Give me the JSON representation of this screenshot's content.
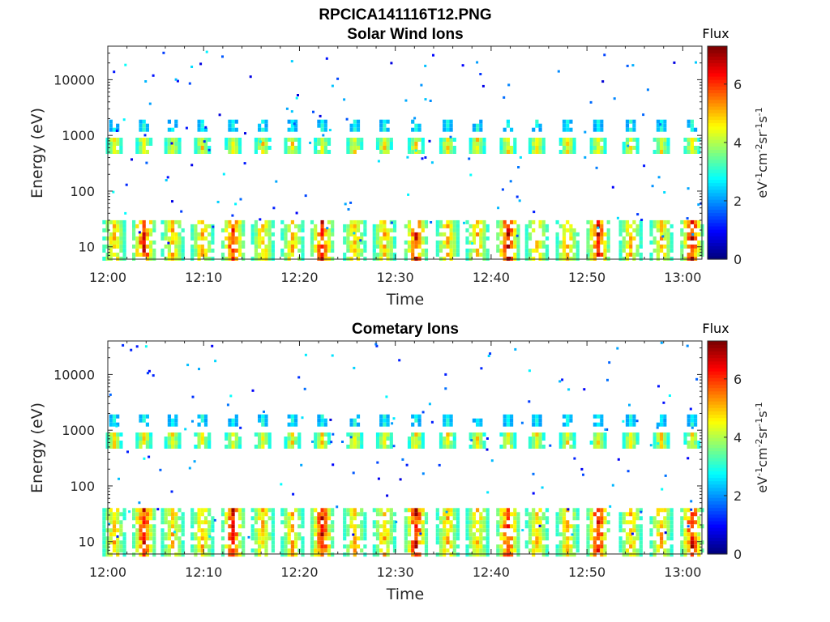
{
  "figure": {
    "title": "RPCICA141116T12.PNG"
  },
  "chart_data": [
    {
      "type": "heatmap",
      "title": "Solar Wind Ions",
      "xlabel": "Time",
      "ylabel": "Energy (eV)",
      "x_ticks": [
        "12:00",
        "12:10",
        "12:20",
        "12:30",
        "12:40",
        "12:50",
        "13:00"
      ],
      "y_ticks": [
        "10",
        "100",
        "1000",
        "10000"
      ],
      "y_scale": "log",
      "ylim": [
        6,
        40000
      ],
      "xlim_minutes": [
        0,
        62
      ],
      "colorbar": {
        "label": "Flux",
        "unit": "eV-1cm-2sr-1s-1",
        "range": [
          0,
          7.3
        ],
        "ticks": [
          "0",
          "2",
          "4",
          "6"
        ]
      },
      "grid": false,
      "features": {
        "pulses_minutes": [
          0.5,
          3.6,
          6.6,
          9.7,
          12.9,
          16.0,
          19.1,
          22.2,
          25.6,
          28.7,
          32.0,
          35.3,
          38.4,
          41.6,
          44.6,
          47.8,
          51.0,
          54.4,
          57.6,
          60.8
        ],
        "high_energy_bands_eV": [
          700,
          1600
        ],
        "low_energy_band_eV": [
          6,
          30
        ],
        "peak_flux": 7.3
      }
    },
    {
      "type": "heatmap",
      "title": "Cometary Ions",
      "xlabel": "Time",
      "ylabel": "Energy (eV)",
      "x_ticks": [
        "12:00",
        "12:10",
        "12:20",
        "12:30",
        "12:40",
        "12:50",
        "13:00"
      ],
      "y_ticks": [
        "10",
        "100",
        "1000",
        "10000"
      ],
      "y_scale": "log",
      "ylim": [
        6,
        40000
      ],
      "xlim_minutes": [
        0,
        62
      ],
      "colorbar": {
        "label": "Flux",
        "unit": "eV-1cm-2sr-1s-1",
        "range": [
          0,
          7.3
        ],
        "ticks": [
          "0",
          "2",
          "4",
          "6"
        ]
      },
      "grid": false,
      "features": {
        "pulses_minutes": [
          0.5,
          3.6,
          6.6,
          9.7,
          12.9,
          16.0,
          19.1,
          22.2,
          25.6,
          28.7,
          32.0,
          35.3,
          38.4,
          41.6,
          44.6,
          47.8,
          51.0,
          54.4,
          57.6,
          60.8
        ],
        "high_energy_bands_eV": [
          700,
          1600
        ],
        "low_energy_band_eV": [
          6,
          40
        ],
        "peak_flux": 7.3
      }
    }
  ]
}
